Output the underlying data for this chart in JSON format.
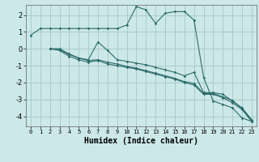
{
  "xlabel": "Humidex (Indice chaleur)",
  "bg_color": "#cce8e8",
  "grid_color": "#aacccc",
  "line_color": "#2d6b6b",
  "xlim": [
    -0.5,
    23.5
  ],
  "ylim": [
    -4.6,
    2.6
  ],
  "yticks": [
    -4,
    -3,
    -2,
    -1,
    0,
    1,
    2
  ],
  "xticks": [
    0,
    1,
    2,
    3,
    4,
    5,
    6,
    7,
    8,
    9,
    10,
    11,
    12,
    13,
    14,
    15,
    16,
    17,
    18,
    19,
    20,
    21,
    22,
    23
  ],
  "lines": [
    {
      "x": [
        0,
        1,
        2,
        3,
        4,
        5,
        6,
        7,
        8,
        9,
        10,
        11,
        12,
        13,
        14,
        15,
        16,
        17,
        18,
        19,
        20,
        21,
        22,
        23
      ],
      "y": [
        0.8,
        1.2,
        1.2,
        1.2,
        1.2,
        1.2,
        1.2,
        1.2,
        1.2,
        1.2,
        1.4,
        2.5,
        2.3,
        1.5,
        2.1,
        2.2,
        2.2,
        1.7,
        -1.7,
        -3.1,
        -3.3,
        -3.5,
        -4.1,
        -4.3
      ]
    },
    {
      "x": [
        2,
        3,
        4,
        5,
        6,
        7,
        8,
        9,
        10,
        11,
        12,
        13,
        14,
        15,
        16,
        17,
        18,
        19,
        20,
        21,
        22,
        23
      ],
      "y": [
        0.0,
        0.0,
        -0.3,
        -0.55,
        -0.65,
        0.4,
        -0.1,
        -0.65,
        -0.75,
        -0.85,
        -0.95,
        -1.1,
        -1.25,
        -1.4,
        -1.6,
        -1.4,
        -2.6,
        -2.6,
        -2.7,
        -3.1,
        -3.5,
        -4.2
      ]
    },
    {
      "x": [
        2,
        3,
        4,
        5,
        6,
        7,
        8,
        9,
        10,
        11,
        12,
        13,
        14,
        15,
        16,
        17,
        18,
        19,
        20,
        21,
        22,
        23
      ],
      "y": [
        0.0,
        -0.05,
        -0.35,
        -0.55,
        -0.7,
        -0.65,
        -0.8,
        -0.9,
        -1.05,
        -1.15,
        -1.3,
        -1.45,
        -1.6,
        -1.75,
        -1.95,
        -2.05,
        -2.65,
        -2.65,
        -2.85,
        -3.05,
        -3.55,
        -4.25
      ]
    },
    {
      "x": [
        2,
        3,
        4,
        5,
        6,
        7,
        8,
        9,
        10,
        11,
        12,
        13,
        14,
        15,
        16,
        17,
        18,
        19,
        20,
        21,
        22,
        23
      ],
      "y": [
        0.0,
        -0.1,
        -0.45,
        -0.65,
        -0.8,
        -0.7,
        -0.9,
        -1.0,
        -1.1,
        -1.2,
        -1.35,
        -1.5,
        -1.65,
        -1.8,
        -2.0,
        -2.15,
        -2.7,
        -2.7,
        -2.9,
        -3.2,
        -3.6,
        -4.3
      ]
    }
  ]
}
